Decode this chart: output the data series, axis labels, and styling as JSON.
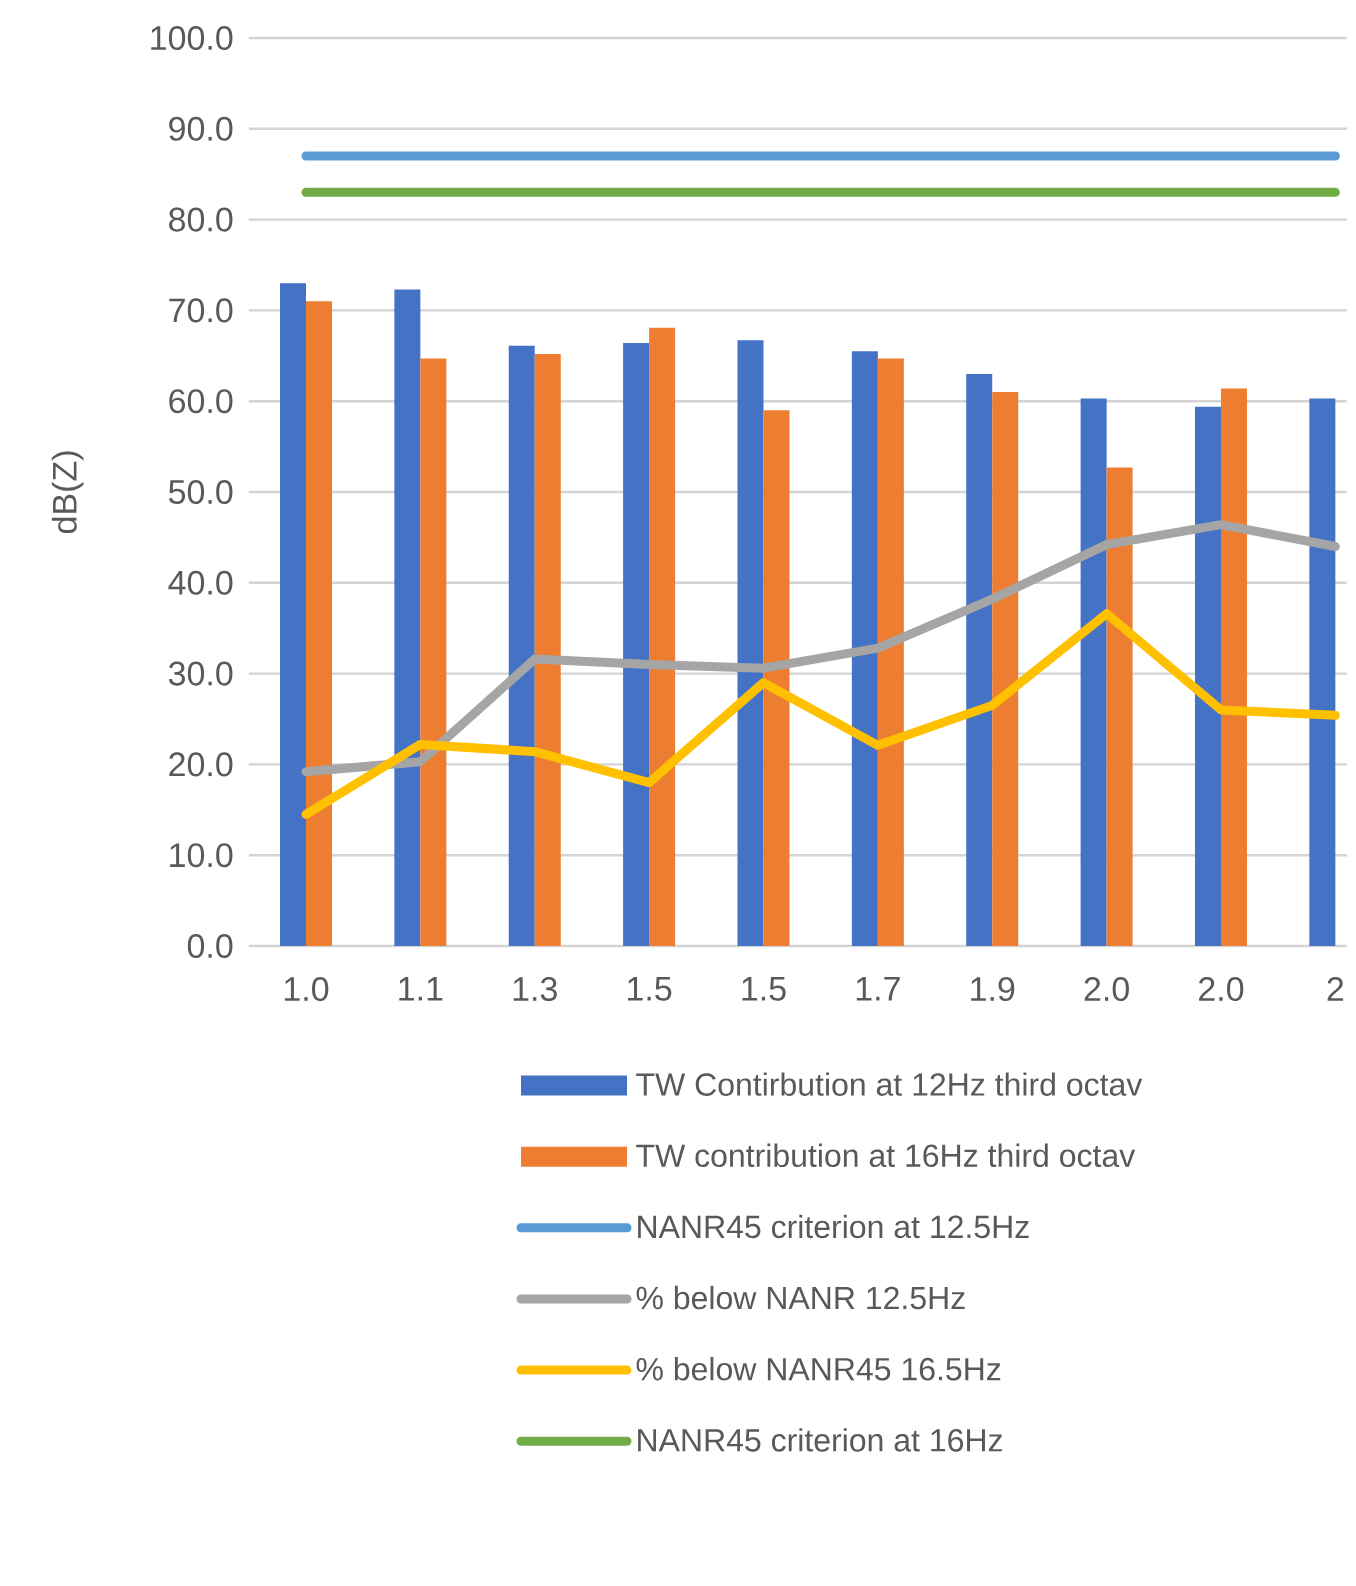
{
  "chart_data": {
    "type": "bar",
    "ylabel": "dB(Z)",
    "categories": [
      "1.0",
      "1.1",
      "1.3",
      "1.5",
      "1.5",
      "1.7",
      "1.9",
      "2.0",
      "2.0",
      "2"
    ],
    "ylim": [
      0,
      100
    ],
    "yticks": [
      {
        "value": 0,
        "label": "0.0"
      },
      {
        "value": 10,
        "label": "10.0"
      },
      {
        "value": 20,
        "label": "20.0"
      },
      {
        "value": 30,
        "label": "30.0"
      },
      {
        "value": 40,
        "label": "40.0"
      },
      {
        "value": 50,
        "label": "50.0"
      },
      {
        "value": 60,
        "label": "60.0"
      },
      {
        "value": 70,
        "label": "70.0"
      },
      {
        "value": 80,
        "label": "80.0"
      },
      {
        "value": 90,
        "label": "90.0"
      },
      {
        "value": 100,
        "label": "100.0"
      }
    ],
    "grid": "y",
    "legend": "bottom",
    "series": [
      {
        "name": "TW Contirbution at 12Hz third octav",
        "color": "#4472c4",
        "values": [
          73.0,
          72.3,
          66.1,
          66.4,
          66.7,
          65.5,
          63.0,
          60.3,
          59.4,
          60.3
        ]
      },
      {
        "name": "TW contribution at 16Hz third octav",
        "color": "#ed7d31",
        "values": [
          71.0,
          64.7,
          65.2,
          68.1,
          59.0,
          64.7,
          61.0,
          52.7,
          61.4,
          null
        ]
      },
      {
        "name": "NANR45 criterion at 12.5Hz",
        "type": "line",
        "color": "#5b9bd5",
        "values": [
          87.0,
          87.0,
          87.0,
          87.0,
          87.0,
          87.0,
          87.0,
          87.0,
          87.0,
          87.0
        ]
      },
      {
        "name": "% below NANR 12.5Hz",
        "type": "line",
        "color": "#a5a5a5",
        "values": [
          19.2,
          20.3,
          31.6,
          31.0,
          30.6,
          32.8,
          38.2,
          44.2,
          46.4,
          44.0
        ]
      },
      {
        "name": "% below NANR45 16.5Hz",
        "type": "line",
        "color": "#ffc000",
        "values": [
          14.5,
          22.2,
          21.4,
          18.0,
          29.0,
          22.1,
          26.5,
          36.6,
          26.0,
          25.4
        ]
      },
      {
        "name": "NANR45 criterion at 16Hz",
        "type": "line",
        "color": "#70ad47",
        "values": [
          83.0,
          83.0,
          83.0,
          83.0,
          83.0,
          83.0,
          83.0,
          83.0,
          83.0,
          83.0
        ]
      }
    ]
  }
}
